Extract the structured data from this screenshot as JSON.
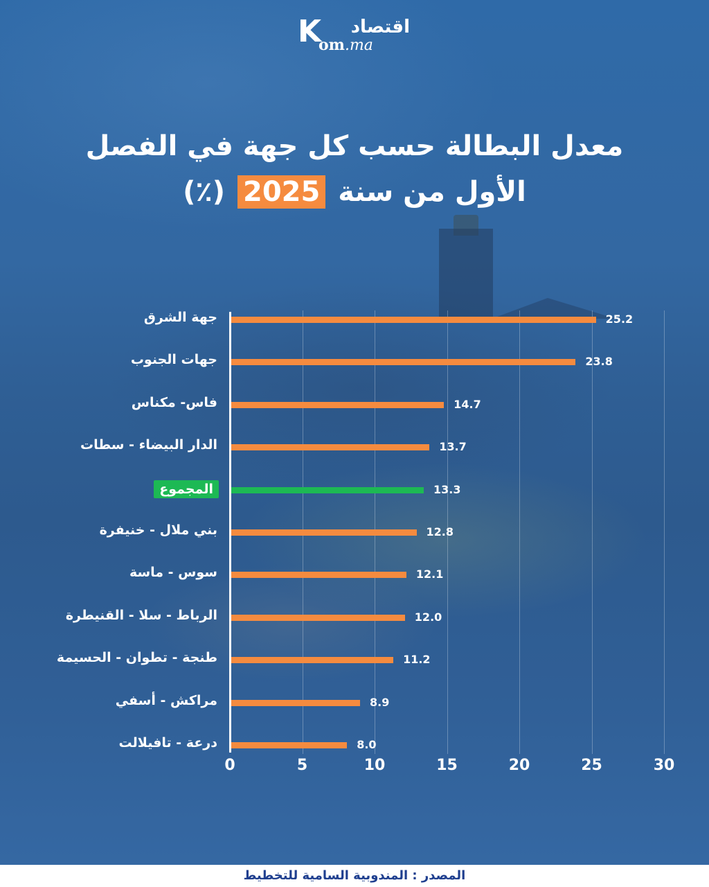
{
  "logo": {
    "arabic": "اقتصاد",
    "latin_prefix": "K",
    "latin_main": "om",
    "latin_suffix": ".ma"
  },
  "title": {
    "line1": "معدل البطالة حسب كل جهة في الفصل",
    "line2_prefix": "الأول من سنة",
    "year": "2025",
    "unit": "(٪)"
  },
  "colors": {
    "background": "#2f6aa8",
    "bar": "#f58b3f",
    "total_bar": "#1db954",
    "year_badge": "#f58b3f",
    "footer_text": "#1f3f8f"
  },
  "chart_data": {
    "type": "bar",
    "orientation": "horizontal",
    "title": "معدل البطالة حسب كل جهة في الفصل الأول من سنة 2025 (٪)",
    "xlabel": "",
    "ylabel": "",
    "xlim": [
      0,
      30
    ],
    "xticks": [
      0,
      5,
      10,
      15,
      20,
      25,
      30
    ],
    "grid": true,
    "categories": [
      "جهة الشرق",
      "جهات الجنوب",
      "فاس- مكناس",
      "الدار البيضاء - سطات",
      "المجموع",
      "بني ملال - خنيفرة",
      "سوس - ماسة",
      "الرباط - سلا - القنيطرة",
      "طنجة - تطوان - الحسيمة",
      "مراكش - أسفي",
      "درعة - تافيلالت"
    ],
    "values": [
      25.2,
      23.8,
      14.7,
      13.7,
      13.3,
      12.8,
      12.1,
      12.0,
      11.2,
      8.9,
      8.0
    ],
    "value_labels": [
      "25.2",
      "23.8",
      "14.7",
      "13.7",
      "13.3",
      "12.8",
      "12.1",
      "12.0",
      "11.2",
      "8.9",
      "8.0"
    ],
    "highlight": {
      "category": "المجموع",
      "color": "#1db954"
    }
  },
  "axis": {
    "ticks": [
      "0",
      "5",
      "10",
      "15",
      "20",
      "25",
      "30"
    ]
  },
  "footer": {
    "source": "المصدر : المندوبية السامية للتخطيط"
  }
}
